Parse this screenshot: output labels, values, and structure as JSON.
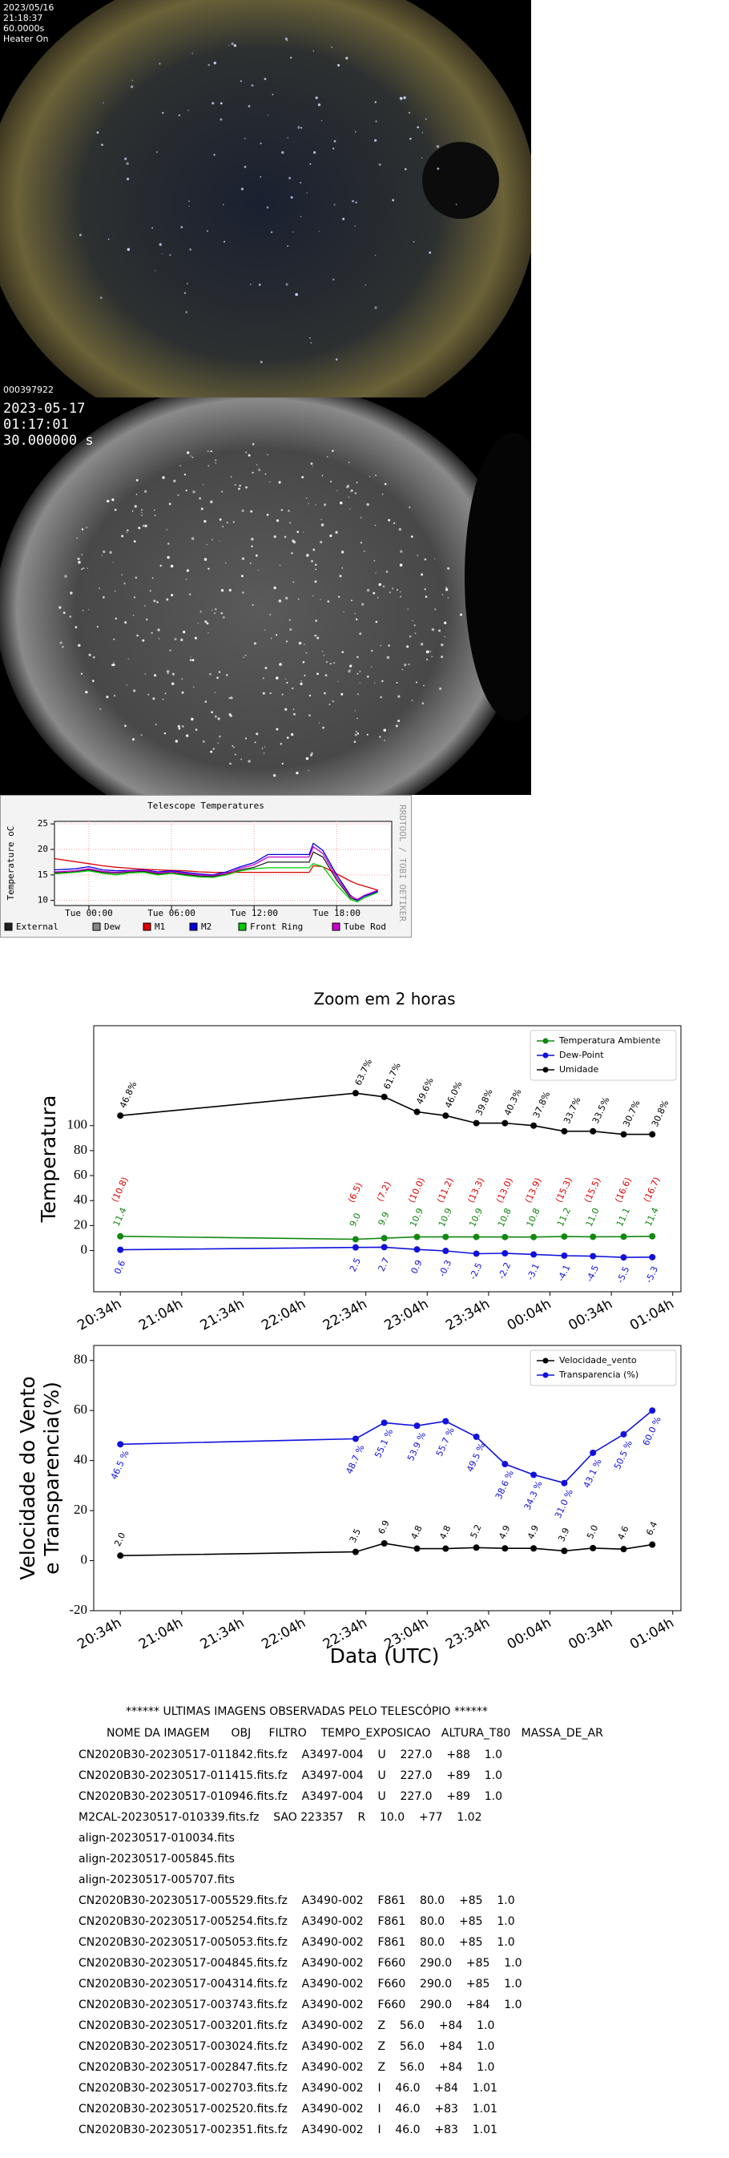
{
  "camera1": {
    "date": "2023/05/16",
    "time": "21:18:37",
    "exposure": "60.0000s",
    "status": "Heater On",
    "frame": "000397922"
  },
  "camera2": {
    "date": "2023-05-17",
    "time": "01:17:01",
    "exposure": "30.000000 s"
  },
  "chart_data": [
    {
      "type": "line",
      "title": "Telescope Temperatures",
      "ylabel": "Temperature oC",
      "watermark": "RRDTOOL / TOBI OETIKER",
      "grid": true,
      "legend": "bottom",
      "markers": false,
      "xlim": [
        -2.5,
        22
      ],
      "ylim": [
        9,
        25.5
      ],
      "yticks": [
        10,
        15,
        20,
        25
      ],
      "xticks": [
        {
          "value": 0,
          "label": "Tue 00:00"
        },
        {
          "value": 6,
          "label": "Tue 06:00"
        },
        {
          "value": 12,
          "label": "Tue 12:00"
        },
        {
          "value": 18,
          "label": "Tue 18:00"
        }
      ],
      "x": [
        -2.5,
        -1,
        0,
        1,
        2,
        3,
        4,
        5,
        6,
        7,
        8,
        9,
        10,
        11,
        12,
        13,
        14,
        15,
        16,
        16.3,
        17,
        18,
        19,
        19.5,
        20,
        21
      ],
      "series": [
        {
          "name": "External",
          "color": "#222222",
          "values": [
            15.4,
            15.6,
            16.0,
            15.5,
            15.3,
            15.6,
            15.7,
            15.2,
            15.4,
            15.1,
            14.8,
            14.7,
            15.1,
            16.0,
            16.5,
            17.5,
            17.5,
            17.5,
            17.5,
            19.5,
            18.5,
            14.0,
            10.5,
            10.0,
            10.8,
            11.7
          ]
        },
        {
          "name": "Dew",
          "color": "#888888",
          "values": [
            null,
            null,
            null,
            null,
            null,
            null,
            null,
            null,
            null,
            null,
            null,
            null,
            null,
            null,
            null,
            null,
            null,
            null,
            null,
            null,
            null,
            null,
            null,
            null,
            null,
            null
          ]
        },
        {
          "name": "M1",
          "color": "#dd0000",
          "values": [
            18.2,
            17.6,
            17.2,
            16.8,
            16.5,
            16.3,
            16.1,
            16.0,
            15.9,
            15.8,
            15.6,
            15.5,
            15.5,
            15.5,
            15.5,
            15.5,
            15.5,
            15.5,
            15.5,
            16.8,
            16.6,
            15.2,
            13.8,
            13.2,
            12.8,
            12.0
          ]
        },
        {
          "name": "M2",
          "color": "#0000dd",
          "values": [
            16.0,
            16.2,
            16.6,
            16.0,
            15.8,
            15.9,
            16.0,
            15.6,
            15.8,
            15.5,
            15.2,
            15.0,
            15.6,
            16.6,
            17.4,
            19.0,
            19.0,
            19.0,
            19.0,
            21.2,
            19.8,
            15.0,
            11.0,
            10.0,
            10.8,
            11.8
          ]
        },
        {
          "name": "Front Ring",
          "color": "#00cc00",
          "values": [
            15.2,
            15.5,
            15.8,
            15.3,
            15.0,
            15.4,
            15.5,
            15.0,
            15.3,
            14.9,
            14.6,
            14.5,
            15.0,
            15.8,
            16.2,
            16.4,
            16.4,
            16.4,
            16.4,
            17.2,
            16.6,
            13.0,
            10.2,
            9.7,
            10.5,
            11.6
          ]
        },
        {
          "name": "Tube Rod",
          "color": "#cc00cc",
          "values": [
            15.6,
            15.8,
            16.2,
            15.7,
            15.5,
            15.8,
            15.9,
            15.4,
            15.6,
            15.3,
            15.0,
            14.9,
            15.3,
            16.3,
            17.0,
            18.5,
            18.5,
            18.5,
            18.5,
            20.5,
            19.2,
            14.5,
            10.8,
            10.2,
            11.0,
            12.0
          ]
        }
      ]
    },
    {
      "type": "line",
      "title": "Zoom em 2 horas",
      "ylabel": [
        "Temperatura"
      ],
      "legend": "upper right",
      "markers": true,
      "xlim": [
        -13,
        274
      ],
      "ylim": [
        -33,
        180
      ],
      "yticks": [
        0,
        20,
        40,
        60,
        80,
        100
      ],
      "xticks": [
        {
          "value": 0,
          "label": "20:34h"
        },
        {
          "value": 30,
          "label": "21:04h"
        },
        {
          "value": 60,
          "label": "21:34h"
        },
        {
          "value": 90,
          "label": "22:04h"
        },
        {
          "value": 120,
          "label": "22:34h"
        },
        {
          "value": 150,
          "label": "23:04h"
        },
        {
          "value": 180,
          "label": "23:34h"
        },
        {
          "value": 210,
          "label": "00:04h"
        },
        {
          "value": 240,
          "label": "00:34h"
        },
        {
          "value": 270,
          "label": "01:04h"
        }
      ],
      "x": [
        0,
        115,
        129,
        145,
        159,
        174,
        188,
        202,
        217,
        231,
        246,
        260
      ],
      "series": [
        {
          "name": "Temperatura Ambiente",
          "color": "#118811",
          "values": [
            11.4,
            9.0,
            9.9,
            10.9,
            10.9,
            10.9,
            10.8,
            10.8,
            11.2,
            11.0,
            11.1,
            11.4
          ],
          "value_labels": [
            "11.4",
            "9.0",
            "9.9",
            "10.9",
            "10.9",
            "10.9",
            "10.8",
            "10.8",
            "11.2",
            "11.0",
            "11.1",
            "11.4"
          ]
        },
        {
          "name": "Dew-Point",
          "color": "#1111dd",
          "values": [
            0.6,
            2.5,
            2.7,
            0.9,
            -0.3,
            -2.5,
            -2.2,
            -3.1,
            -4.1,
            -4.5,
            -5.5,
            -5.3
          ],
          "value_labels": [
            "0.6",
            "2.5",
            "2.7",
            "0.9",
            "-0.3",
            "-2.5",
            "-2.2",
            "-3.1",
            "-4.1",
            "-4.5",
            "-5.5",
            "-5.3"
          ]
        },
        {
          "name": "Umidade",
          "color": "#000000",
          "values": [
            108,
            126,
            123,
            111,
            108,
            102,
            102,
            100,
            95.5,
            95.5,
            93,
            93
          ]
        }
      ],
      "annotations": {
        "humidity": [
          "46.8%",
          "63.7%",
          "61.7%",
          "49.6%",
          "46.0%",
          "39.8%",
          "40.3%",
          "37.8%",
          "33.7%",
          "33.5%",
          "30.7%",
          "30.8%"
        ],
        "spread": [
          "(10.8)",
          "(6.5)",
          "(7.2)",
          "(10.0)",
          "(11.2)",
          "(13.3)",
          "(13.0)",
          "(13.9)",
          "(15.3)",
          "(15.5)",
          "(16.6)",
          "(16.7)"
        ]
      }
    },
    {
      "type": "line",
      "ylabel": [
        "Velocidade do Vento",
        "e Transparencia(%)"
      ],
      "xlabel": "Data (UTC)",
      "legend": "upper right",
      "markers": true,
      "xlim": [
        -13,
        274
      ],
      "ylim": [
        -20,
        86
      ],
      "yticks": [
        -20,
        0,
        20,
        40,
        60,
        80
      ],
      "xticks": [
        {
          "value": 0,
          "label": "20:34h"
        },
        {
          "value": 30,
          "label": "21:04h"
        },
        {
          "value": 60,
          "label": "21:34h"
        },
        {
          "value": 90,
          "label": "22:04h"
        },
        {
          "value": 120,
          "label": "22:34h"
        },
        {
          "value": 150,
          "label": "23:04h"
        },
        {
          "value": 180,
          "label": "23:34h"
        },
        {
          "value": 210,
          "label": "00:04h"
        },
        {
          "value": 240,
          "label": "00:34h"
        },
        {
          "value": 270,
          "label": "01:04h"
        }
      ],
      "x": [
        0,
        115,
        129,
        145,
        159,
        174,
        188,
        202,
        217,
        231,
        246,
        260
      ],
      "series": [
        {
          "name": "Velocidade_vento",
          "color": "#000000",
          "values": [
            2.0,
            3.5,
            6.9,
            4.8,
            4.8,
            5.2,
            4.9,
            4.9,
            3.9,
            5.0,
            4.6,
            6.4
          ],
          "value_labels": [
            "2.0",
            "3.5",
            "6.9",
            "4.8",
            "4.8",
            "5.2",
            "4.9",
            "4.9",
            "3.9",
            "5.0",
            "4.6",
            "6.4"
          ]
        },
        {
          "name": "Transparencia (%)",
          "color": "#1111dd",
          "values": [
            46.5,
            48.7,
            55.1,
            53.9,
            55.7,
            49.5,
            38.6,
            34.3,
            31.0,
            43.1,
            50.5,
            60.0
          ],
          "value_labels": [
            "46.5 %",
            "48.7 %",
            "55.1 %",
            "53.9 %",
            "55.7 %",
            "49.5 %",
            "38.6 %",
            "34.3 %",
            "31.0 %",
            "43.1 %",
            "50.5 %",
            "60.0 %"
          ]
        }
      ]
    }
  ],
  "list": {
    "title": "****** ULTIMAS IMAGENS OBSERVADAS PELO TELESCÓPIO ******",
    "header": "NOME DA IMAGEM      OBJ     FILTRO    TEMPO_EXPOSICAO   ALTURA_T80   MASSA_DE_AR",
    "rows": [
      "CN2020B30-20230517-011842.fits.fz    A3497-004    U    227.0    +88    1.0",
      "CN2020B30-20230517-011415.fits.fz    A3497-004    U    227.0    +89    1.0",
      "CN2020B30-20230517-010946.fits.fz    A3497-004    U    227.0    +89    1.0",
      "M2CAL-20230517-010339.fits.fz    SAO 223357    R    10.0    +77    1.02",
      "align-20230517-010034.fits",
      "align-20230517-005845.fits",
      "align-20230517-005707.fits",
      "CN2020B30-20230517-005529.fits.fz    A3490-002    F861    80.0    +85    1.0",
      "CN2020B30-20230517-005254.fits.fz    A3490-002    F861    80.0    +85    1.0",
      "CN2020B30-20230517-005053.fits.fz    A3490-002    F861    80.0    +85    1.0",
      "CN2020B30-20230517-004845.fits.fz    A3490-002    F660    290.0    +85    1.0",
      "CN2020B30-20230517-004314.fits.fz    A3490-002    F660    290.0    +85    1.0",
      "CN2020B30-20230517-003743.fits.fz    A3490-002    F660    290.0    +84    1.0",
      "CN2020B30-20230517-003201.fits.fz    A3490-002    Z    56.0    +84    1.0",
      "CN2020B30-20230517-003024.fits.fz    A3490-002    Z    56.0    +84    1.0",
      "CN2020B30-20230517-002847.fits.fz    A3490-002    Z    56.0    +84    1.0",
      "CN2020B30-20230517-002703.fits.fz    A3490-002    I    46.0    +84    1.01",
      "CN2020B30-20230517-002520.fits.fz    A3490-002    I    46.0    +83    1.01",
      "CN2020B30-20230517-002351.fits.fz    A3490-002    I    46.0    +83    1.01"
    ]
  }
}
